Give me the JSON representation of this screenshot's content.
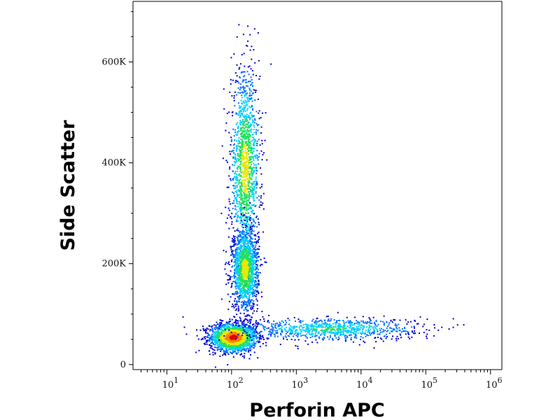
{
  "chart_data": {
    "type": "scatter",
    "title": "",
    "xlabel": "Perforin APC",
    "ylabel": "Side Scatter",
    "x_scale": "log",
    "xlim": [
      3,
      1500000
    ],
    "ylim": [
      -10000,
      720000
    ],
    "grid": false,
    "legend": "none",
    "x_ticks": [
      {
        "value": 10,
        "base": "10",
        "exp": "1"
      },
      {
        "value": 100,
        "base": "10",
        "exp": "2"
      },
      {
        "value": 1000,
        "base": "10",
        "exp": "3"
      },
      {
        "value": 10000,
        "base": "10",
        "exp": "4"
      },
      {
        "value": 100000,
        "base": "10",
        "exp": "5"
      },
      {
        "value": 1000000,
        "base": "10",
        "exp": "6"
      }
    ],
    "y_ticks": [
      {
        "value": 0,
        "label": "0"
      },
      {
        "value": 200000,
        "label": "200K"
      },
      {
        "value": 400000,
        "label": "400K"
      },
      {
        "value": 600000,
        "label": "600K"
      }
    ],
    "colormap": [
      "#0000d0",
      "#0070ff",
      "#00d0ff",
      "#20e060",
      "#e8e800",
      "#ff8000",
      "#e00000"
    ],
    "populations": [
      {
        "name": "",
        "center_x_log10": 2.02,
        "center_y": 55000,
        "spread_x_log10": 0.18,
        "spread_y": 14000,
        "density": "high"
      },
      {
        "name": "",
        "center_x_log10": 2.2,
        "center_y": 390000,
        "spread_x_log10": 0.11,
        "spread_y": 95000,
        "density": "medium"
      },
      {
        "name": "",
        "center_x_log10": 2.2,
        "center_y": 190000,
        "spread_x_log10": 0.1,
        "spread_y": 40000,
        "density": "medium"
      },
      {
        "name": "",
        "center_x_log10": 3.5,
        "center_y": 72000,
        "spread_x_log10": 0.7,
        "spread_y": 11000,
        "density": "low"
      }
    ]
  }
}
